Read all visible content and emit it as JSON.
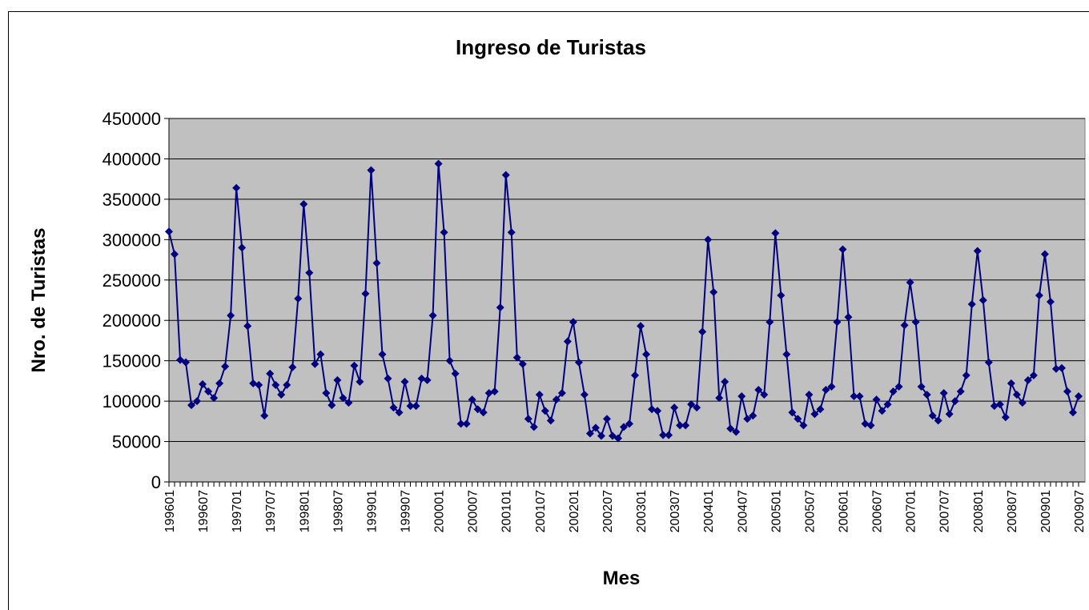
{
  "chart_data": {
    "type": "line",
    "title": "Ingreso de Turistas",
    "x_label": "Mes",
    "y_label": "Nro. de Turistas",
    "categories": [
      "199601",
      null,
      null,
      null,
      null,
      null,
      "199607",
      null,
      null,
      null,
      null,
      null,
      "199701",
      null,
      null,
      null,
      null,
      null,
      "199707",
      null,
      null,
      null,
      null,
      null,
      "199801",
      null,
      null,
      null,
      null,
      null,
      "199807",
      null,
      null,
      null,
      null,
      null,
      "199901",
      null,
      null,
      null,
      null,
      null,
      "199907",
      null,
      null,
      null,
      null,
      null,
      "200001",
      null,
      null,
      null,
      null,
      null,
      "200007",
      null,
      null,
      null,
      null,
      null,
      "200101",
      null,
      null,
      null,
      null,
      null,
      "200107",
      null,
      null,
      null,
      null,
      null,
      "200201",
      null,
      null,
      null,
      null,
      null,
      "200207",
      null,
      null,
      null,
      null,
      null,
      "200301",
      null,
      null,
      null,
      null,
      null,
      "200307",
      null,
      null,
      null,
      null,
      null,
      "200401",
      null,
      null,
      null,
      null,
      null,
      "200407",
      null,
      null,
      null,
      null,
      null,
      "200501",
      null,
      null,
      null,
      null,
      null,
      "200507",
      null,
      null,
      null,
      null,
      null,
      "200601",
      null,
      null,
      null,
      null,
      null,
      "200607",
      null,
      null,
      null,
      null,
      null,
      "200701",
      null,
      null,
      null,
      null,
      null,
      "200707",
      null,
      null,
      null,
      null,
      null,
      "200801",
      null,
      null,
      null,
      null,
      null,
      "200807",
      null,
      null,
      null,
      null,
      null,
      "200901",
      null,
      null,
      null,
      null,
      null,
      "200907"
    ],
    "series": [
      {
        "color": "#000080",
        "values": [
          310000,
          282000,
          151000,
          148000,
          95000,
          100000,
          121000,
          112000,
          104000,
          122000,
          143000,
          206000,
          364000,
          290000,
          193000,
          122000,
          120000,
          82000,
          134000,
          120000,
          108000,
          120000,
          142000,
          227000,
          344000,
          259000,
          146000,
          158000,
          110000,
          95000,
          126000,
          104000,
          98000,
          144000,
          124000,
          233000,
          386000,
          271000,
          158000,
          128000,
          92000,
          86000,
          124000,
          94000,
          94000,
          128000,
          126000,
          206000,
          394000,
          309000,
          150000,
          134000,
          72000,
          72000,
          102000,
          90000,
          86000,
          110000,
          112000,
          216000,
          380000,
          309000,
          154000,
          146000,
          78000,
          68000,
          108000,
          88000,
          76000,
          102000,
          110000,
          174000,
          198000,
          148000,
          108000,
          60000,
          67000,
          57000,
          78000,
          57000,
          54000,
          68000,
          72000,
          132000,
          193000,
          158000,
          90000,
          88000,
          58000,
          58000,
          92000,
          70000,
          70000,
          96000,
          92000,
          186000,
          300000,
          235000,
          104000,
          124000,
          66000,
          62000,
          106000,
          78000,
          82000,
          114000,
          108000,
          198000,
          308000,
          231000,
          158000,
          86000,
          78000,
          70000,
          108000,
          84000,
          90000,
          114000,
          118000,
          198000,
          288000,
          204000,
          106000,
          106000,
          72000,
          70000,
          102000,
          88000,
          96000,
          112000,
          118000,
          194000,
          247000,
          198000,
          118000,
          108000,
          82000,
          76000,
          110000,
          84000,
          100000,
          112000,
          132000,
          220000,
          286000,
          225000,
          148000,
          94000,
          96000,
          80000,
          122000,
          108000,
          98000,
          126000,
          132000,
          231000,
          282000,
          223000,
          140000,
          141000,
          112000,
          86000,
          106000
        ]
      }
    ],
    "ylim": [
      0,
      450000
    ],
    "yticks": [
      0,
      50000,
      100000,
      150000,
      200000,
      250000,
      300000,
      350000,
      400000,
      450000
    ],
    "grid": true,
    "plot_background": "#c0c0c0"
  }
}
